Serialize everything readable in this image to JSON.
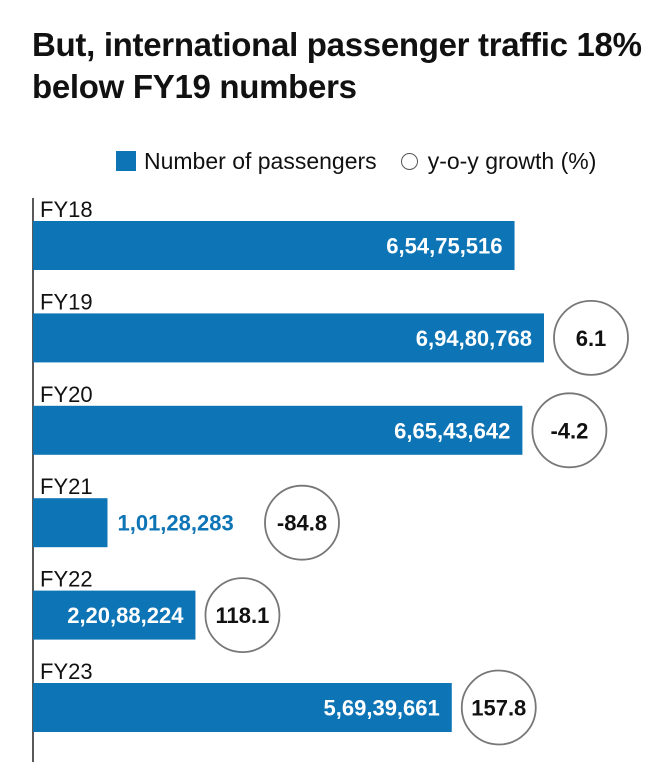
{
  "title": "But, international passenger traffic 18% below FY19 numbers",
  "legend": {
    "passengers": "Number of passengers",
    "growth": "y-o-y growth (%)"
  },
  "colors": {
    "bar": "#0d74b6",
    "outside_label": "#0d74b6",
    "circle_border": "#777777"
  },
  "chart_data": {
    "type": "bar",
    "orientation": "horizontal",
    "title": "But, international passenger traffic 18% below FY19 numbers",
    "categories": [
      "FY18",
      "FY19",
      "FY20",
      "FY21",
      "FY22",
      "FY23"
    ],
    "series": [
      {
        "name": "Number of passengers",
        "values": [
          65475516,
          69480768,
          66543642,
          10128283,
          22088224,
          56939661
        ],
        "labels": [
          "6,54,75,516",
          "6,94,80,768",
          "6,65,43,642",
          "1,01,28,283",
          "2,20,88,224",
          "5,69,39,661"
        ]
      },
      {
        "name": "y-o-y growth (%)",
        "values": [
          null,
          6.1,
          -4.2,
          -84.8,
          118.1,
          157.8
        ],
        "labels": [
          "",
          "6.1",
          "-4.2",
          "-84.8",
          "118.1",
          "157.8"
        ]
      }
    ],
    "legend_position": "top",
    "grid": false
  }
}
